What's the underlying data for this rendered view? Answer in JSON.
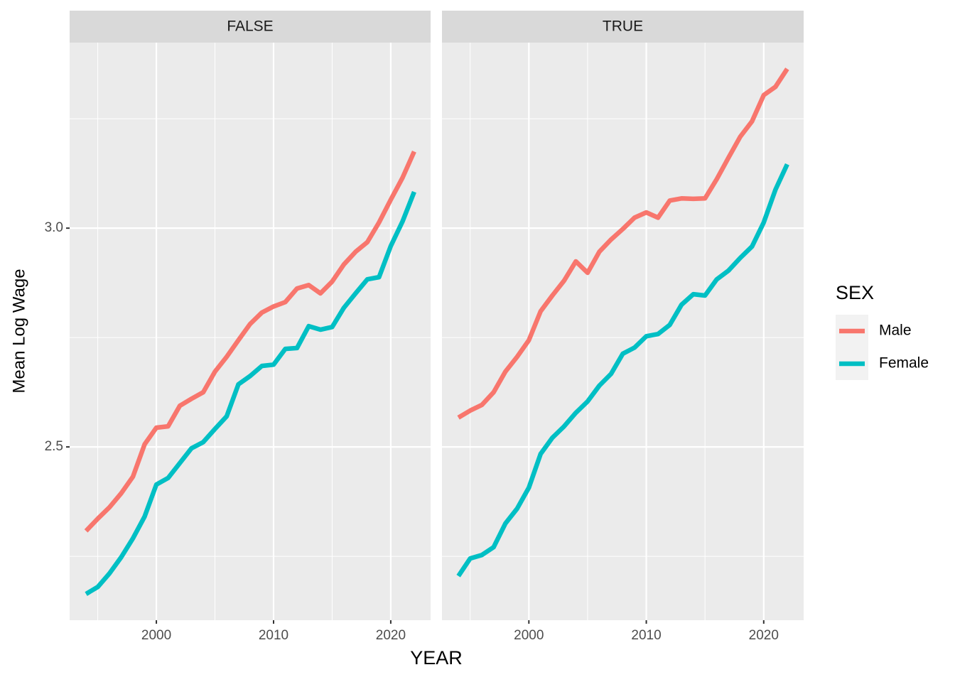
{
  "x_label": "YEAR",
  "y_label": "Mean Log Wage",
  "legend_title": "SEX",
  "chart_data": [
    {
      "type": "line",
      "title": "FALSE",
      "x": [
        1994,
        1995,
        1996,
        1997,
        1998,
        1999,
        2000,
        2001,
        2002,
        2003,
        2004,
        2005,
        2006,
        2007,
        2008,
        2009,
        2010,
        2011,
        2012,
        2013,
        2014,
        2015,
        2016,
        2017,
        2018,
        2019,
        2020,
        2021,
        2022
      ],
      "series": [
        {
          "name": "Male",
          "color": "#f8766d",
          "values": [
            2.308,
            2.336,
            2.362,
            2.394,
            2.432,
            2.506,
            2.544,
            2.547,
            2.594,
            2.61,
            2.625,
            2.672,
            2.706,
            2.744,
            2.781,
            2.807,
            2.821,
            2.831,
            2.862,
            2.87,
            2.851,
            2.878,
            2.917,
            2.946,
            2.968,
            3.013,
            3.065,
            3.115,
            3.175
          ]
        },
        {
          "name": "Female",
          "color": "#00bfc4",
          "values": [
            2.164,
            2.18,
            2.211,
            2.248,
            2.291,
            2.341,
            2.414,
            2.429,
            2.463,
            2.497,
            2.511,
            2.541,
            2.57,
            2.643,
            2.662,
            2.685,
            2.688,
            2.724,
            2.726,
            2.776,
            2.768,
            2.774,
            2.818,
            2.851,
            2.883,
            2.888,
            2.959,
            3.015,
            3.083
          ]
        }
      ],
      "xlim": [
        1992.6,
        2023.4
      ],
      "xticks": [
        2000,
        2010,
        2020
      ],
      "minor_xticks": [
        1995,
        2005,
        2015
      ],
      "ylim": [
        2.104,
        3.424
      ],
      "yticks": [
        2.5,
        {
          "value": 3,
          "label": "3.0"
        }
      ],
      "minor_yticks": [
        2.25,
        2.75,
        3.25
      ],
      "grid": true
    },
    {
      "type": "line",
      "title": "TRUE",
      "x": [
        1994,
        1995,
        1996,
        1997,
        1998,
        1999,
        2000,
        2001,
        2002,
        2003,
        2004,
        2005,
        2006,
        2007,
        2008,
        2009,
        2010,
        2011,
        2012,
        2013,
        2014,
        2015,
        2016,
        2017,
        2018,
        2019,
        2020,
        2021,
        2022
      ],
      "series": [
        {
          "color": "#f8766d",
          "values": [
            2.567,
            2.583,
            2.596,
            2.625,
            2.672,
            2.706,
            2.744,
            2.81,
            2.846,
            2.88,
            2.924,
            2.898,
            2.946,
            2.974,
            2.998,
            3.024,
            3.036,
            3.024,
            3.063,
            3.068,
            3.067,
            3.068,
            3.112,
            3.161,
            3.209,
            3.244,
            3.304,
            3.323,
            3.364
          ]
        },
        {
          "color": "#00bfc4",
          "values": [
            2.205,
            2.245,
            2.253,
            2.271,
            2.325,
            2.359,
            2.407,
            2.484,
            2.521,
            2.547,
            2.578,
            2.604,
            2.64,
            2.667,
            2.713,
            2.727,
            2.753,
            2.758,
            2.779,
            2.825,
            2.849,
            2.846,
            2.883,
            2.903,
            2.932,
            2.958,
            3.013,
            3.088,
            3.146
          ]
        }
      ],
      "xlim": [
        1992.6,
        2023.4
      ],
      "xticks": [
        2000,
        2010,
        2020
      ],
      "minor_xticks": [
        1995,
        2005,
        2015
      ],
      "ylim": [
        2.104,
        3.424
      ],
      "yticks": [
        2.5,
        3
      ],
      "minor_yticks": [
        2.25,
        2.75,
        3.25
      ],
      "grid": true
    }
  ]
}
